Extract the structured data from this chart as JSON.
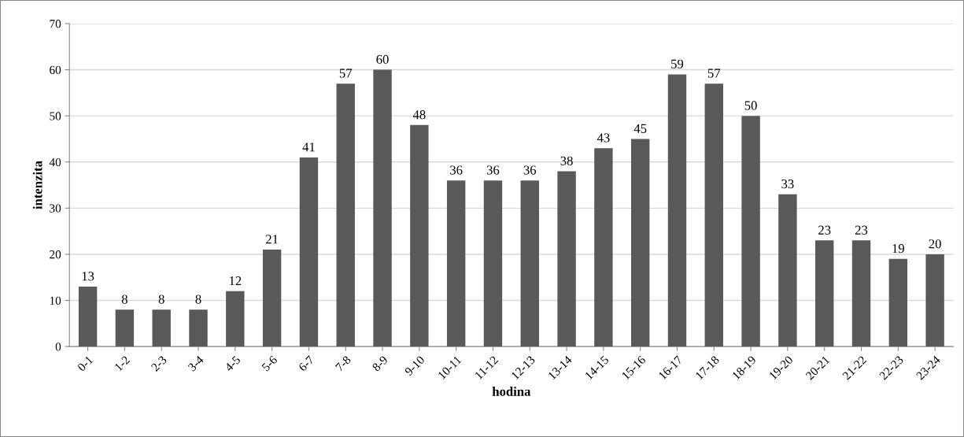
{
  "chart_data": {
    "type": "bar",
    "xlabel": "hodina",
    "ylabel": "intenzita",
    "categories": [
      "0-1",
      "1-2",
      "2-3",
      "3-4",
      "4-5",
      "5-6",
      "6-7",
      "7-8",
      "8-9",
      "9-10",
      "10-11",
      "11-12",
      "12-13",
      "13-14",
      "14-15",
      "15-16",
      "16-17",
      "17-18",
      "18-19",
      "19-20",
      "20-21",
      "21-22",
      "22-23",
      "23-24"
    ],
    "values": [
      13,
      8,
      8,
      8,
      12,
      21,
      41,
      57,
      60,
      48,
      36,
      36,
      36,
      38,
      43,
      45,
      59,
      57,
      50,
      33,
      23,
      23,
      19,
      20
    ],
    "color": "#595959",
    "ylim": [
      0,
      70
    ],
    "yticks": [
      0,
      10,
      20,
      30,
      40,
      50,
      60,
      70
    ],
    "grid": "y",
    "data_labels": true
  }
}
